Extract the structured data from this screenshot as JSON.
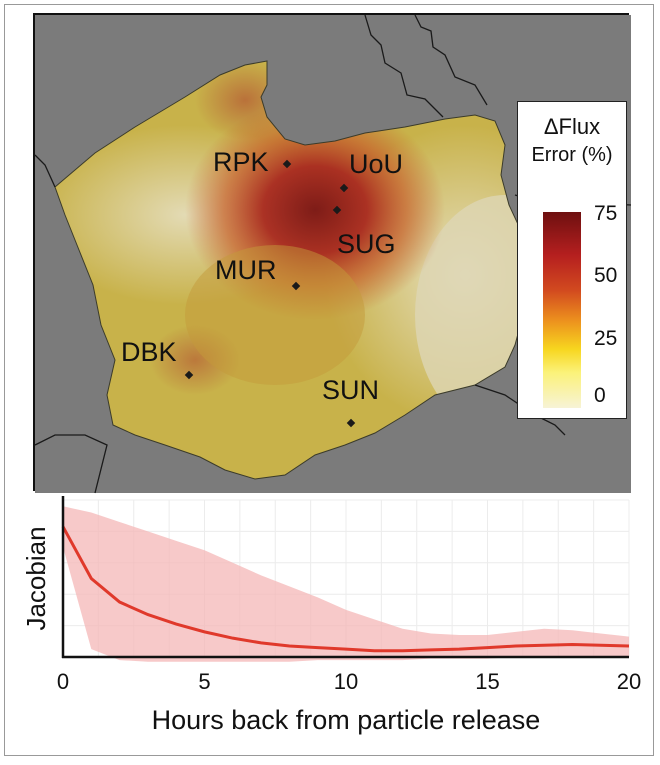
{
  "map": {
    "sites": [
      {
        "label": "RPK"
      },
      {
        "label": "UoU"
      },
      {
        "label": "SUG"
      },
      {
        "label": "MUR"
      },
      {
        "label": "DBK"
      },
      {
        "label": "SUN"
      }
    ],
    "legend": {
      "title_line1": "ΔFlux",
      "title_line2": "Error (%)",
      "ticks": [
        "75",
        "50",
        "25",
        "0"
      ],
      "colors": [
        "#6e1010",
        "#b51f1f",
        "#ec8f1e",
        "#f7d61f",
        "#f7f3d6"
      ]
    }
  },
  "chart_data": {
    "type": "line",
    "xlabel": "Hours back from particle release",
    "ylabel": "Jacobian",
    "xlim": [
      0,
      20
    ],
    "ylim": [
      0,
      1
    ],
    "xticks": [
      0,
      5,
      10,
      15,
      20
    ],
    "grid": true,
    "series": [
      {
        "color": "#e0392b",
        "x": [
          0,
          1,
          2,
          3,
          4,
          5,
          6,
          7,
          8,
          9,
          10,
          11,
          12,
          13,
          14,
          15,
          16,
          17,
          18,
          19,
          20
        ],
        "y": [
          0.83,
          0.5,
          0.35,
          0.27,
          0.21,
          0.16,
          0.12,
          0.09,
          0.07,
          0.06,
          0.05,
          0.04,
          0.04,
          0.045,
          0.05,
          0.06,
          0.07,
          0.075,
          0.08,
          0.075,
          0.07
        ],
        "band_upper": [
          0.96,
          0.92,
          0.86,
          0.8,
          0.74,
          0.68,
          0.6,
          0.52,
          0.45,
          0.38,
          0.3,
          0.24,
          0.18,
          0.15,
          0.14,
          0.14,
          0.16,
          0.18,
          0.17,
          0.15,
          0.13
        ],
        "band_lower": [
          0.7,
          0.05,
          -0.02,
          -0.03,
          -0.03,
          -0.03,
          -0.03,
          -0.03,
          -0.03,
          -0.02,
          -0.02,
          -0.02,
          -0.02,
          -0.01,
          -0.01,
          -0.01,
          0.0,
          0.0,
          0.0,
          0.0,
          0.0
        ],
        "band_color": "#f4b7b7"
      }
    ]
  }
}
